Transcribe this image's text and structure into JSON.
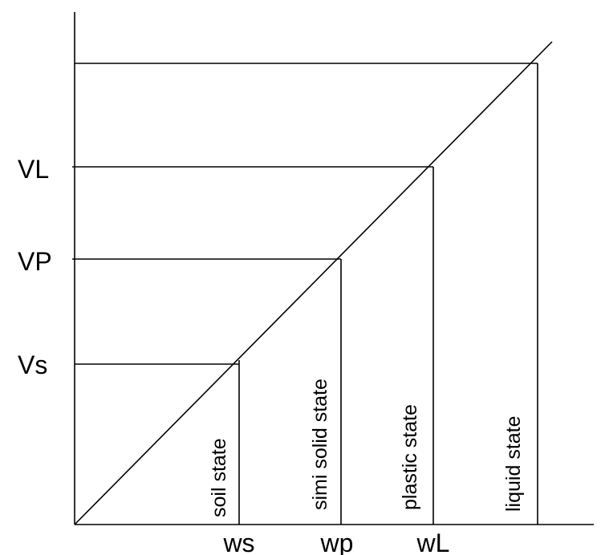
{
  "colors": {
    "line": "#000000",
    "background": "#ffffff",
    "text": "#000000"
  },
  "y_labels": {
    "vl": "VL",
    "vp": "VP",
    "vs": "Vs"
  },
  "x_labels": {
    "ws": "ws",
    "wp": "wp",
    "wl": "wL"
  },
  "states": {
    "soil": "soil state",
    "semi_solid": "simi solid state",
    "plastic": "plastic state",
    "liquid": "liquid state"
  }
}
